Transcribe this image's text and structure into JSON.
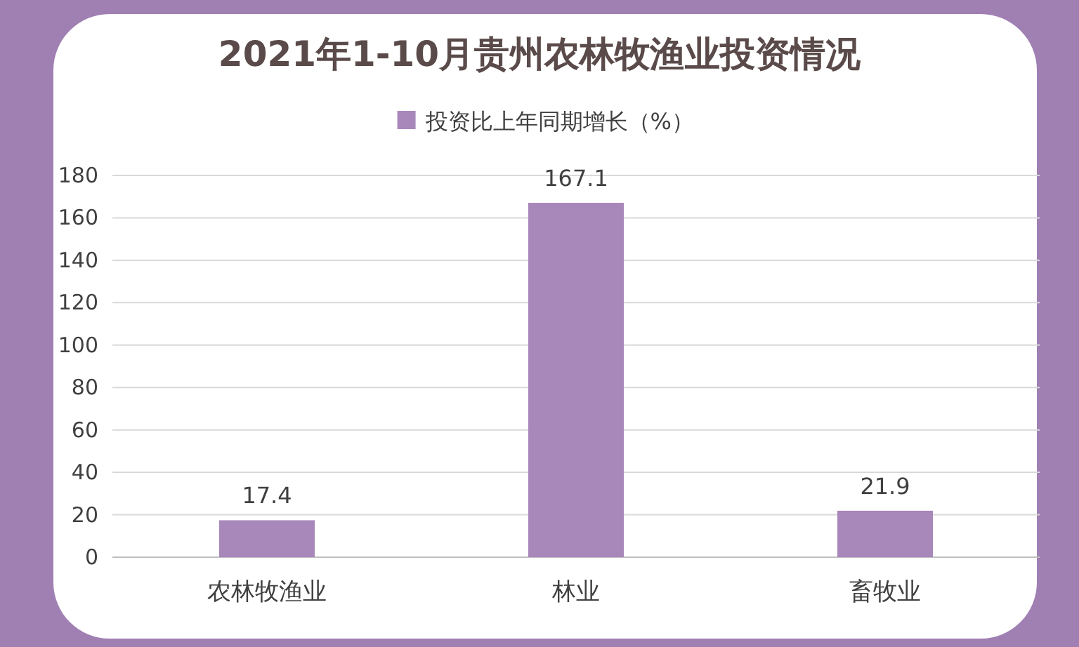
{
  "chart_data": {
    "type": "bar",
    "title": "2021年1-10月贵州农林牧渔业投资情况",
    "categories": [
      "农林牧渔业",
      "林业",
      "畜牧业"
    ],
    "series": [
      {
        "name": "投资比上年同期增长（%）",
        "color": "#a888bb",
        "values": [
          17.4,
          167.1,
          21.9
        ]
      }
    ],
    "ylim": [
      0,
      180
    ],
    "yticks": [
      0,
      20,
      40,
      60,
      80,
      100,
      120,
      140,
      160,
      180
    ],
    "grid": "y",
    "legend": "top",
    "data_labels": true
  }
}
